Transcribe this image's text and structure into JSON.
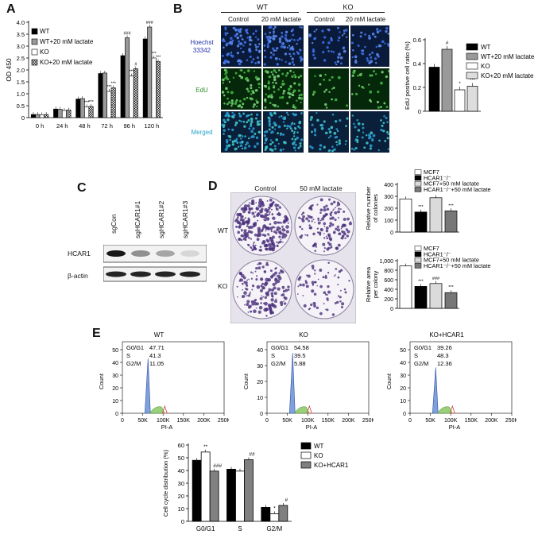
{
  "panels": {
    "A": "A",
    "B": "B",
    "C": "C",
    "D": "D",
    "E": "E"
  },
  "panelA": {
    "chart_data": {
      "type": "bar",
      "ylabel": "OD 450",
      "ylim": [
        0,
        4.0
      ],
      "yticks": [
        "0",
        "0.5",
        "1.0",
        "1.5",
        "2.0",
        "2.5",
        "3.0",
        "3.5",
        "4.0"
      ],
      "categories": [
        "0 h",
        "24 h",
        "48 h",
        "72 h",
        "96 h",
        "120 h"
      ],
      "series": [
        {
          "name": "WT",
          "values": [
            0.13,
            0.36,
            0.78,
            1.85,
            2.6,
            3.3
          ]
        },
        {
          "name": "WT+20 mM lactate",
          "values": [
            0.13,
            0.35,
            0.8,
            1.87,
            3.35,
            3.8
          ]
        },
        {
          "name": "KO",
          "values": [
            0.12,
            0.3,
            0.45,
            1.1,
            1.75,
            2.5
          ]
        },
        {
          "name": "KO+20 mM lactate",
          "values": [
            0.13,
            0.32,
            0.47,
            1.25,
            2.05,
            2.35
          ]
        }
      ],
      "annotations": [
        {
          "text": "***",
          "cat": 2,
          "s": 2
        },
        {
          "text": "***",
          "cat": 2,
          "s": 3
        },
        {
          "text": "***",
          "cat": 3,
          "s": 2
        },
        {
          "text": "***",
          "cat": 3,
          "s": 3
        },
        {
          "text": "###",
          "cat": 4,
          "s": 1
        },
        {
          "text": "***",
          "cat": 4,
          "s": 2
        },
        {
          "text": "#",
          "cat": 4,
          "s": 3
        },
        {
          "text": "###",
          "cat": 5,
          "s": 1
        },
        {
          "text": "***",
          "cat": 5,
          "s": 2
        },
        {
          "text": "***",
          "cat": 5,
          "s": 3
        }
      ]
    }
  },
  "panelB": {
    "groups": [
      "WT",
      "KO"
    ],
    "columns": [
      "Control",
      "20 mM lactate",
      "Control",
      "20 mM lactate"
    ],
    "rows": [
      "Hoechst 33342",
      "EdU",
      "Merged"
    ],
    "chart_data": {
      "type": "bar",
      "ylabel": "EdU positive cell ratio (%)",
      "ylim": [
        0,
        0.6
      ],
      "yticks": [
        "0",
        "0.2",
        "0.4",
        "0.6"
      ],
      "series": [
        {
          "name": "WT",
          "values": [
            0.37
          ],
          "color": "#000000"
        },
        {
          "name": "WT+20 mM lactate",
          "values": [
            0.52
          ],
          "color": "#9a9a9a"
        },
        {
          "name": "KO",
          "values": [
            0.18
          ],
          "color": "#ffffff"
        },
        {
          "name": "KO+20 mM lactate",
          "values": [
            0.21
          ],
          "color": "#dddddd"
        }
      ],
      "annotations": [
        "",
        "#",
        "*",
        "***"
      ]
    }
  },
  "panelC": {
    "lanes": [
      "sgCon",
      "sgHCAR1#1",
      "sgHCAR1#2",
      "sgHCAR1#3"
    ],
    "blots": [
      "HCAR1",
      "β-actin"
    ],
    "hcar1_intensity": [
      1.0,
      0.45,
      0.35,
      0.12
    ]
  },
  "panelD": {
    "columns": [
      "Control",
      "50 mM lactate"
    ],
    "rows": [
      "WT",
      "KO"
    ],
    "chart_top": {
      "type": "bar",
      "ylabel": "Relative number of colonies",
      "ylim": [
        0,
        400
      ],
      "yticks": [
        "0",
        "100",
        "200",
        "300",
        "400"
      ],
      "legend": [
        "MCF7",
        "HCAR1⁻/⁻",
        "MCF7+50 mM lactate",
        "HCAR1⁻/⁻+50 mM lactate"
      ],
      "values": [
        278,
        168,
        288,
        178
      ],
      "annotations": [
        "",
        "***",
        "",
        "***"
      ]
    },
    "chart_bottom": {
      "type": "bar",
      "ylabel": "Relative area per colony",
      "ylim": [
        0,
        1000
      ],
      "yticks": [
        "0",
        "200",
        "400",
        "600",
        "800",
        "1,000"
      ],
      "legend": [
        "MCF7",
        "HCAR1⁻/⁻",
        "MCF7+50 mM lactate",
        "HCAR1⁻/⁻+50 mM lactate"
      ],
      "values": [
        890,
        460,
        520,
        330
      ],
      "annotations": [
        "",
        "***",
        "###",
        "***"
      ]
    }
  },
  "panelE": {
    "histograms": [
      {
        "title": "WT",
        "stats": [
          [
            "G0/G1",
            "47.71"
          ],
          [
            "S",
            "41.3"
          ],
          [
            "G2/M",
            "11.05"
          ]
        ],
        "ymax": 50,
        "yticks": [
          "0",
          "10",
          "20",
          "30",
          "40",
          "50"
        ]
      },
      {
        "title": "KO",
        "stats": [
          [
            "G0/G1",
            "54.58"
          ],
          [
            "S",
            "39.5"
          ],
          [
            "G2/M",
            "5.88"
          ]
        ],
        "ymax": 40,
        "yticks": [
          "0",
          "10",
          "20",
          "30",
          "40"
        ]
      },
      {
        "title": "KO+HCAR1",
        "stats": [
          [
            "G0/G1",
            "39.26"
          ],
          [
            "S",
            "48.3"
          ],
          [
            "G2/M",
            "12.36"
          ]
        ],
        "ymax": 50,
        "yticks": [
          "0",
          "10",
          "20",
          "30",
          "40",
          "50"
        ]
      }
    ],
    "hist_xticks": [
      "0",
      "50K",
      "100K",
      "150K",
      "200K",
      "250K"
    ],
    "hist_xlabel": "PI-A",
    "hist_ylabel": "Count",
    "chart_data": {
      "type": "bar",
      "ylabel": "Cell cycle distribution (%)",
      "ylim": [
        0,
        60
      ],
      "yticks": [
        "0",
        "10",
        "20",
        "30",
        "40",
        "50",
        "60"
      ],
      "categories": [
        "G0/G1",
        "S",
        "G2/M"
      ],
      "series": [
        {
          "name": "WT",
          "values": [
            48,
            41,
            11
          ],
          "color": "#000000"
        },
        {
          "name": "KO",
          "values": [
            54.5,
            39.5,
            6
          ],
          "color": "#ffffff"
        },
        {
          "name": "KO+HCAR1",
          "values": [
            39.5,
            48.5,
            12.5
          ],
          "color": "#808080"
        }
      ],
      "annotations": [
        [
          "",
          "**",
          "###"
        ],
        [
          "",
          "",
          "##"
        ],
        [
          "",
          "*",
          "#"
        ]
      ]
    }
  }
}
